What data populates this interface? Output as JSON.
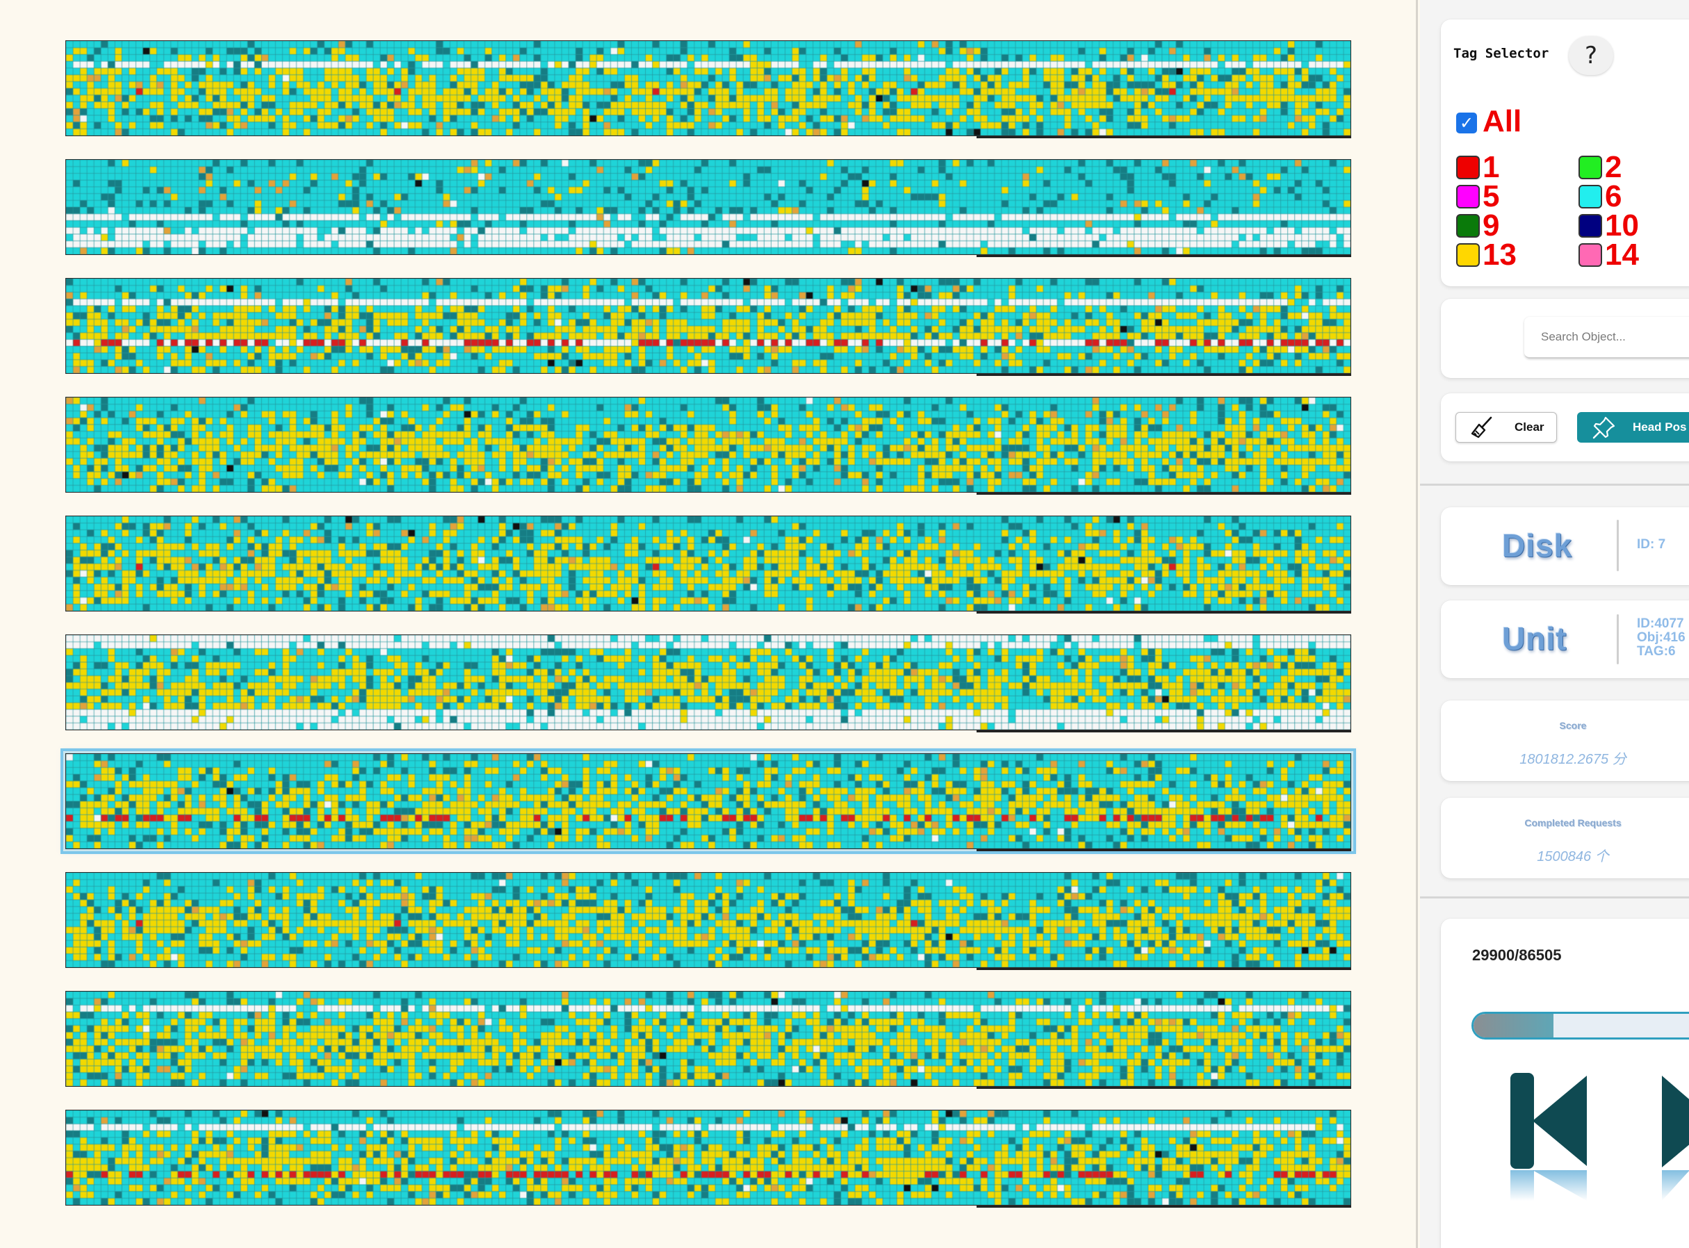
{
  "disk_view": {
    "row_count": 10,
    "selected_row": 6,
    "cell_colors": {
      "cyan": "#1fd4d8",
      "teal": "#167d84",
      "yellow": "#f2d900",
      "orange": "#e2a23a",
      "red": "#d71f1f",
      "white": "#f6f6f6",
      "black": "#111111",
      "grid": "#2a8d93"
    }
  },
  "tag_selector": {
    "title": "Tag Selector",
    "help_label": "?",
    "all_label": "All",
    "all_checked": true,
    "tags": [
      {
        "label": "1",
        "color": "#ee0000"
      },
      {
        "label": "2",
        "color": "#22ee22"
      },
      {
        "label": "5",
        "color": "#ff00ff"
      },
      {
        "label": "6",
        "color": "#22eeee"
      },
      {
        "label": "9",
        "color": "#0a7a0a"
      },
      {
        "label": "10",
        "color": "#000080"
      },
      {
        "label": "13",
        "color": "#ffd700"
      },
      {
        "label": "14",
        "color": "#ff69b4"
      }
    ]
  },
  "search": {
    "placeholder": "Search Object..."
  },
  "actions": {
    "clear_label": "Clear",
    "head_label": "Head Pos"
  },
  "disk_info": {
    "title": "Disk",
    "id_text": "ID: 7"
  },
  "unit_info": {
    "title": "Unit",
    "id_line": "ID:4077",
    "obj_line": "Obj:416",
    "tag_line": "TAG:6"
  },
  "score": {
    "label": "Score",
    "value": "1801812.2675 分"
  },
  "completed": {
    "label": "Completed Requests",
    "value": "1500846 个"
  },
  "progress": {
    "text": "29900/86505",
    "current": 29900,
    "total": 86505
  }
}
